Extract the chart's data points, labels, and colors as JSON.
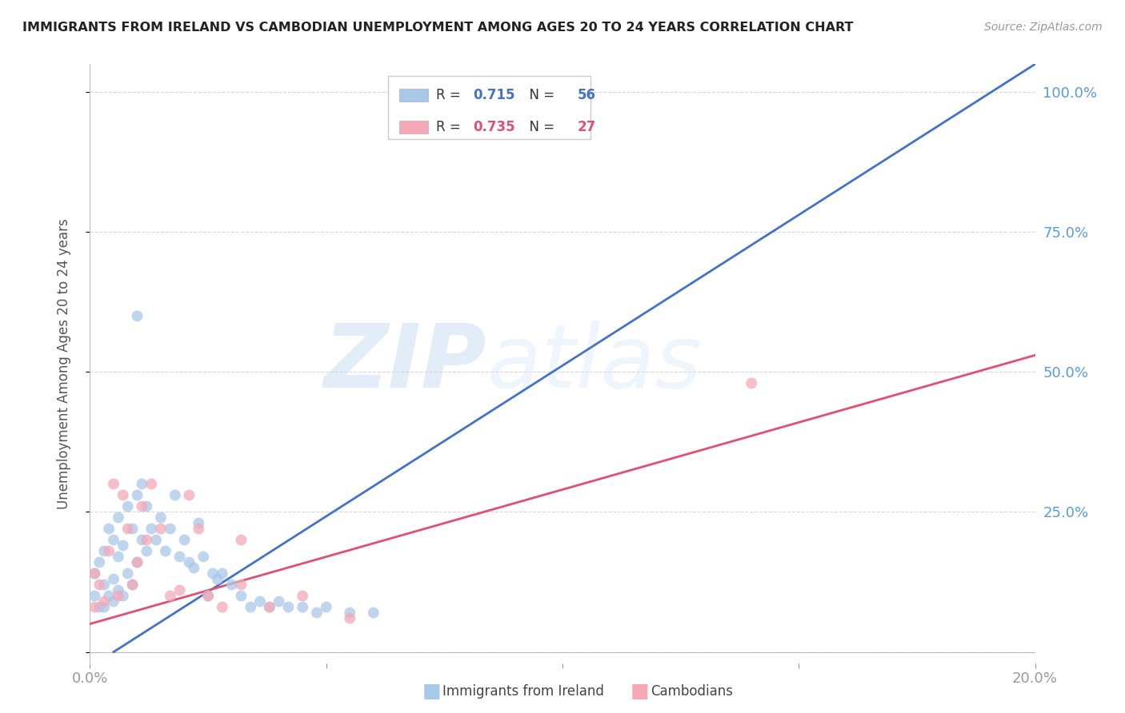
{
  "title": "IMMIGRANTS FROM IRELAND VS CAMBODIAN UNEMPLOYMENT AMONG AGES 20 TO 24 YEARS CORRELATION CHART",
  "source": "Source: ZipAtlas.com",
  "ylabel": "Unemployment Among Ages 20 to 24 years",
  "xlim": [
    0.0,
    0.2
  ],
  "ylim": [
    -0.02,
    1.05
  ],
  "yticks": [
    0.0,
    0.25,
    0.5,
    0.75,
    1.0
  ],
  "ytick_labels": [
    "",
    "25.0%",
    "50.0%",
    "75.0%",
    "100.0%"
  ],
  "xticks": [
    0.0,
    0.05,
    0.1,
    0.15,
    0.2
  ],
  "xtick_labels": [
    "0.0%",
    "",
    "",
    "",
    "20.0%"
  ],
  "watermark": "ZIPatlas",
  "blue_R": 0.715,
  "blue_N": 56,
  "pink_R": 0.735,
  "pink_N": 27,
  "blue_color": "#a8c8e8",
  "pink_color": "#f4a8b8",
  "blue_line_color": "#4472c4",
  "pink_line_color": "#e05070",
  "tick_color": "#5b9bd5",
  "grid_color": "#cccccc",
  "blue_scatter_x": [
    0.001,
    0.001,
    0.002,
    0.002,
    0.003,
    0.003,
    0.003,
    0.004,
    0.004,
    0.005,
    0.005,
    0.005,
    0.006,
    0.006,
    0.006,
    0.007,
    0.007,
    0.008,
    0.008,
    0.009,
    0.009,
    0.01,
    0.01,
    0.011,
    0.011,
    0.012,
    0.012,
    0.013,
    0.014,
    0.015,
    0.016,
    0.017,
    0.018,
    0.019,
    0.02,
    0.021,
    0.022,
    0.023,
    0.024,
    0.025,
    0.026,
    0.027,
    0.028,
    0.03,
    0.032,
    0.034,
    0.036,
    0.038,
    0.04,
    0.042,
    0.045,
    0.048,
    0.05,
    0.055,
    0.06,
    0.01
  ],
  "blue_scatter_y": [
    0.1,
    0.14,
    0.08,
    0.16,
    0.12,
    0.18,
    0.08,
    0.1,
    0.22,
    0.09,
    0.13,
    0.2,
    0.11,
    0.17,
    0.24,
    0.1,
    0.19,
    0.14,
    0.26,
    0.12,
    0.22,
    0.16,
    0.28,
    0.2,
    0.3,
    0.18,
    0.26,
    0.22,
    0.2,
    0.24,
    0.18,
    0.22,
    0.28,
    0.17,
    0.2,
    0.16,
    0.15,
    0.23,
    0.17,
    0.1,
    0.14,
    0.13,
    0.14,
    0.12,
    0.1,
    0.08,
    0.09,
    0.08,
    0.09,
    0.08,
    0.08,
    0.07,
    0.08,
    0.07,
    0.07,
    0.6
  ],
  "pink_scatter_x": [
    0.001,
    0.001,
    0.002,
    0.003,
    0.004,
    0.005,
    0.006,
    0.007,
    0.008,
    0.009,
    0.01,
    0.011,
    0.012,
    0.013,
    0.015,
    0.017,
    0.019,
    0.021,
    0.023,
    0.025,
    0.028,
    0.032,
    0.038,
    0.045,
    0.055,
    0.032,
    0.14
  ],
  "pink_scatter_y": [
    0.08,
    0.14,
    0.12,
    0.09,
    0.18,
    0.3,
    0.1,
    0.28,
    0.22,
    0.12,
    0.16,
    0.26,
    0.2,
    0.3,
    0.22,
    0.1,
    0.11,
    0.28,
    0.22,
    0.1,
    0.08,
    0.12,
    0.08,
    0.1,
    0.06,
    0.2,
    0.48
  ],
  "blue_line_x": [
    0.005,
    0.2
  ],
  "blue_line_y": [
    0.0,
    1.05
  ],
  "pink_line_x": [
    0.0,
    0.2
  ],
  "pink_line_y": [
    0.05,
    0.53
  ]
}
